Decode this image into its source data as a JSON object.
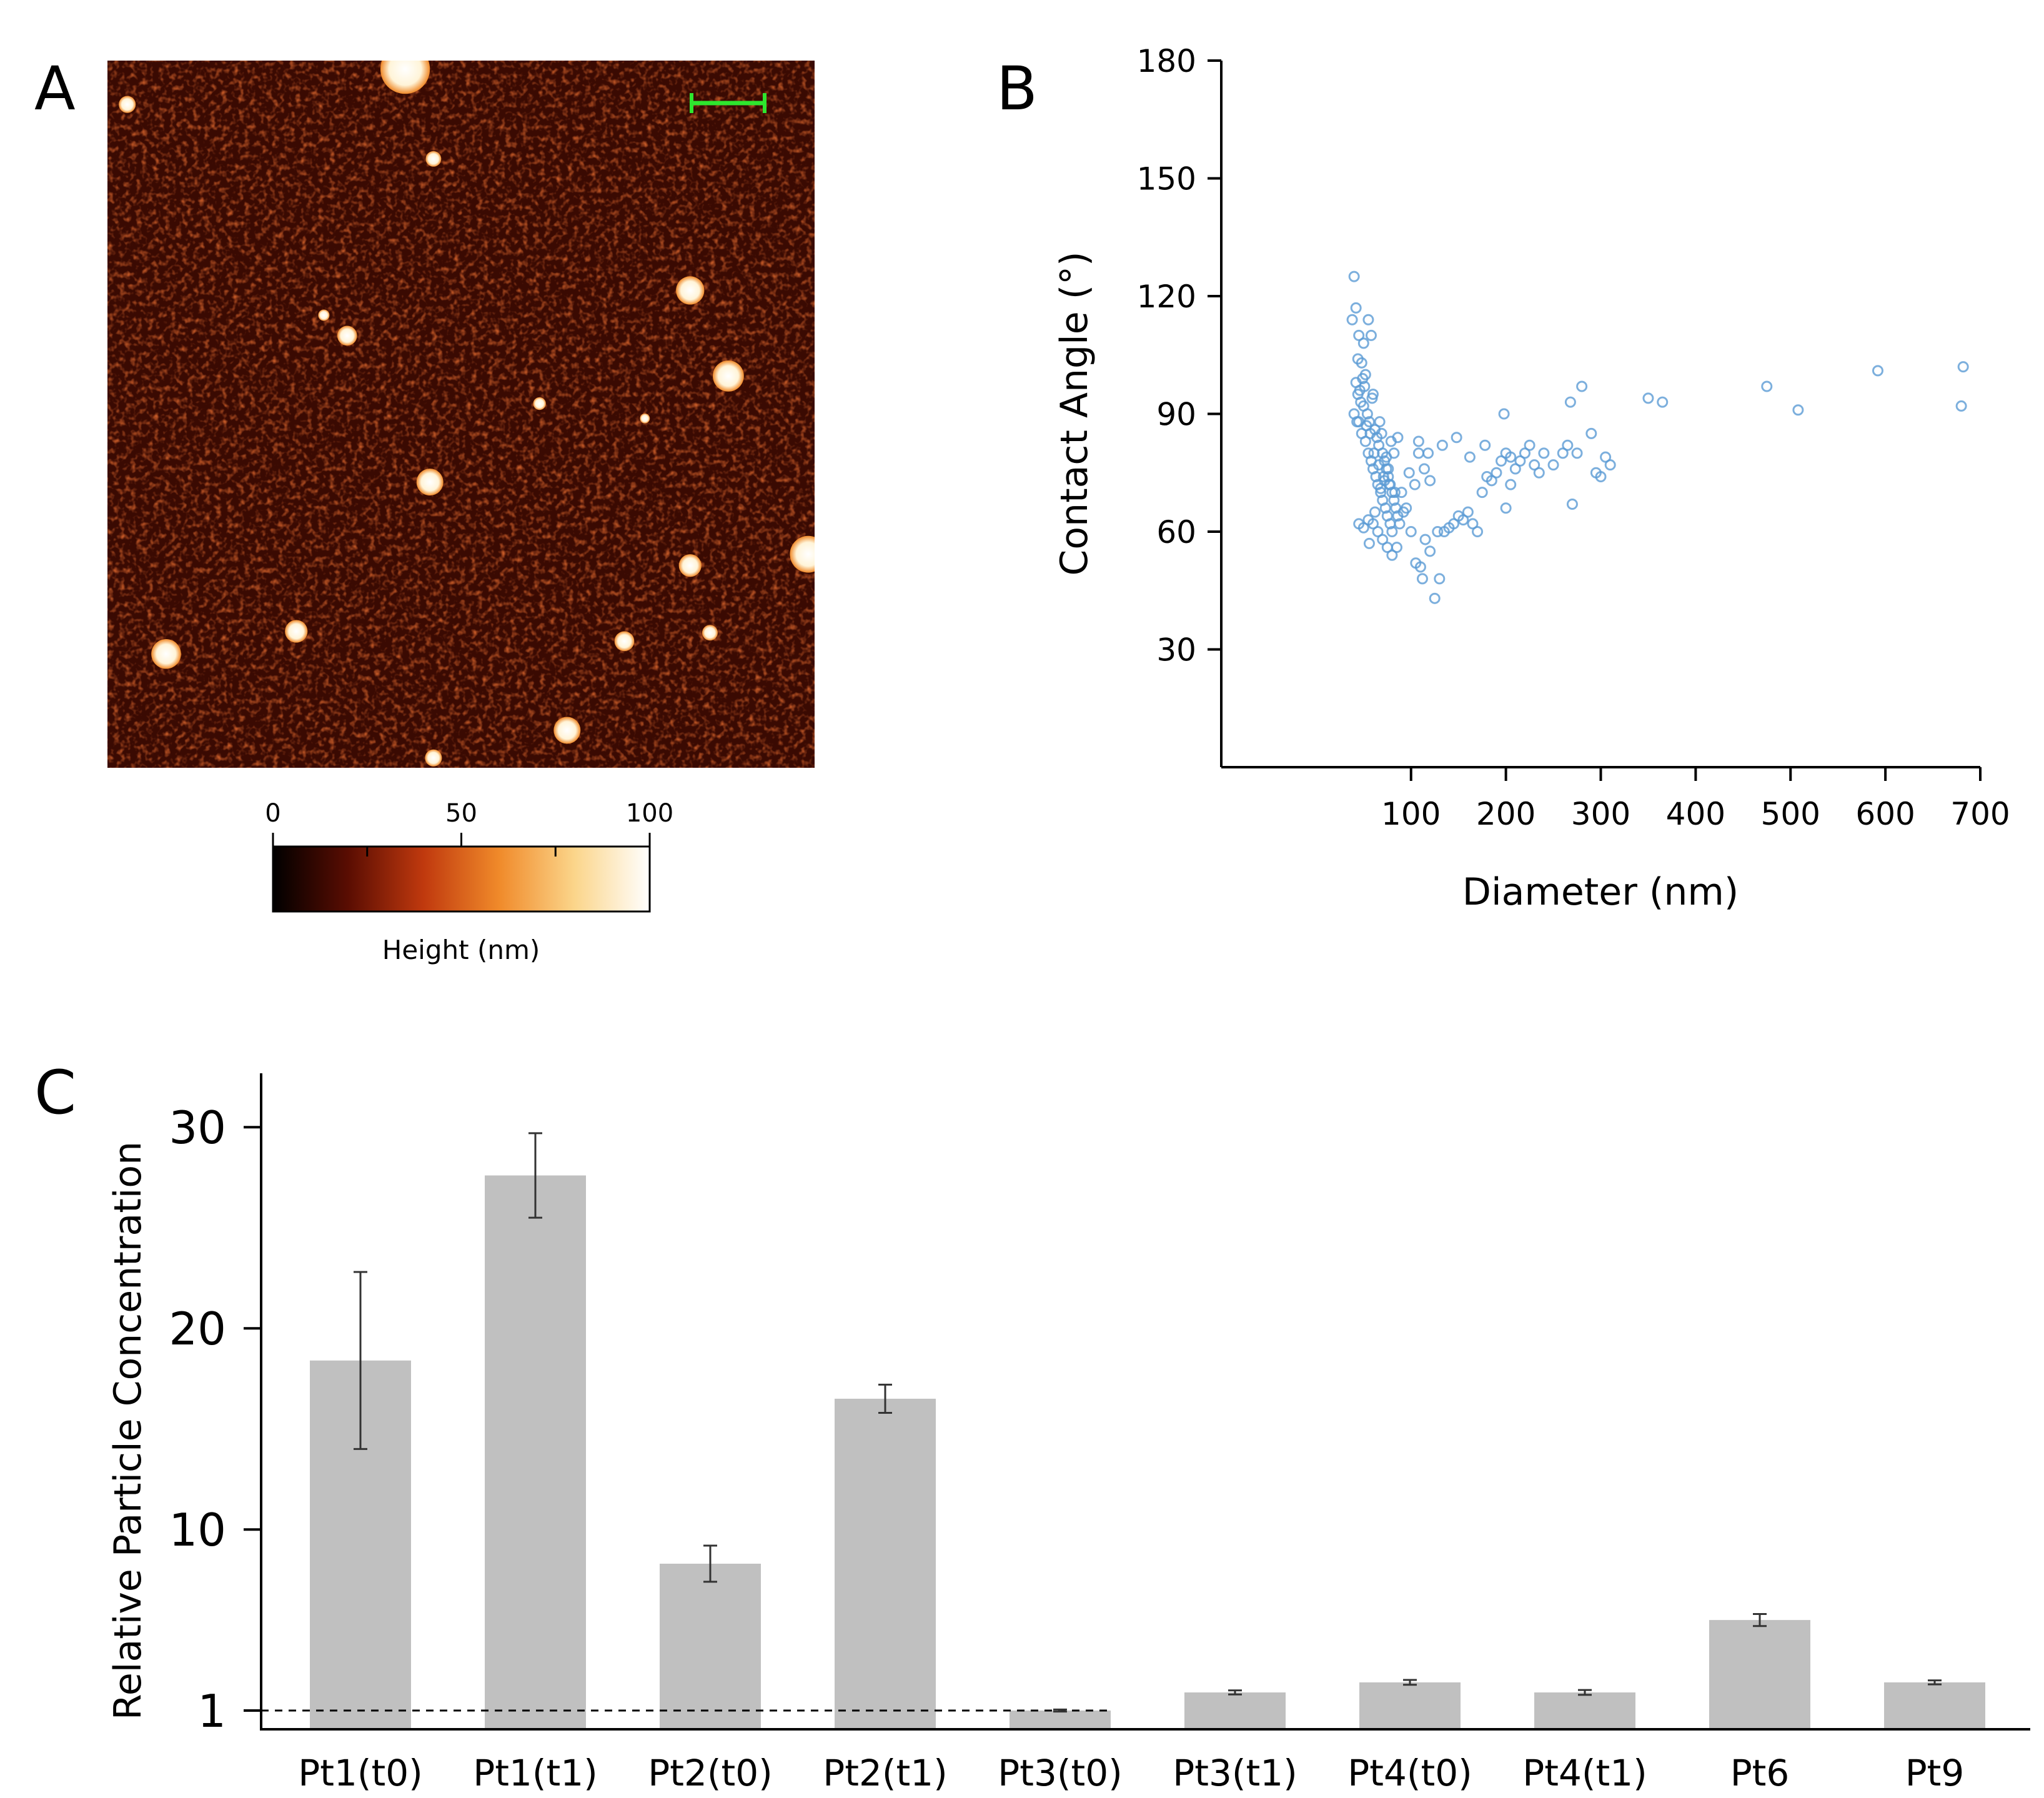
{
  "panel_labels": {
    "a": "A",
    "b": "B",
    "c": "C"
  },
  "colors": {
    "afm_bg": "#3a0a02",
    "scalebar": "#2ee62e",
    "scatter": "#5b9bd5",
    "bar": "#c0c0c0",
    "axis": "#000000"
  },
  "chart_data": [
    {
      "panel": "A",
      "type": "heatmap",
      "title": "",
      "description_shown": "AFM height map",
      "colorbar": {
        "label": "Height (nm)",
        "ticks": [
          0,
          50,
          100
        ],
        "range": [
          0,
          100
        ],
        "minor_ticks": [
          25,
          75
        ],
        "colormap": [
          "#000000",
          "#5a0d02",
          "#c0390e",
          "#f08a2a",
          "#fbd58a",
          "#ffffff"
        ]
      },
      "particles": [
        {
          "x": 0.028,
          "y": 0.062,
          "r": 0.012
        },
        {
          "x": 0.421,
          "y": 0.012,
          "r": 0.035
        },
        {
          "x": 0.461,
          "y": 0.139,
          "r": 0.011
        },
        {
          "x": 0.339,
          "y": 0.389,
          "r": 0.014
        },
        {
          "x": 0.824,
          "y": 0.325,
          "r": 0.02
        },
        {
          "x": 0.878,
          "y": 0.446,
          "r": 0.022
        },
        {
          "x": 0.456,
          "y": 0.596,
          "r": 0.019
        },
        {
          "x": 0.611,
          "y": 0.485,
          "r": 0.009
        },
        {
          "x": 0.824,
          "y": 0.714,
          "r": 0.016
        },
        {
          "x": 0.991,
          "y": 0.698,
          "r": 0.026
        },
        {
          "x": 0.267,
          "y": 0.807,
          "r": 0.016
        },
        {
          "x": 0.083,
          "y": 0.839,
          "r": 0.021
        },
        {
          "x": 0.731,
          "y": 0.821,
          "r": 0.014
        },
        {
          "x": 0.852,
          "y": 0.809,
          "r": 0.011
        },
        {
          "x": 0.65,
          "y": 0.947,
          "r": 0.019
        },
        {
          "x": 0.461,
          "y": 0.986,
          "r": 0.012
        },
        {
          "x": 0.76,
          "y": 0.506,
          "r": 0.007
        },
        {
          "x": 0.306,
          "y": 0.36,
          "r": 0.008
        }
      ]
    },
    {
      "panel": "B",
      "type": "scatter",
      "title": "",
      "xlabel": "Diameter (nm)",
      "ylabel": "Contact Angle (°)",
      "xlim": [
        -100,
        700
      ],
      "ylim": [
        0,
        180
      ],
      "xticks": [
        100,
        200,
        300,
        400,
        500,
        600,
        700
      ],
      "yticks": [
        30,
        60,
        90,
        120,
        150,
        180
      ],
      "x": [
        40,
        42,
        45,
        38,
        50,
        55,
        44,
        48,
        52,
        60,
        58,
        42,
        46,
        50,
        54,
        56,
        62,
        64,
        66,
        70,
        72,
        74,
        76,
        78,
        80,
        82,
        84,
        86,
        40,
        45,
        48,
        52,
        55,
        58,
        60,
        63,
        65,
        68,
        70,
        73,
        75,
        78,
        80,
        45,
        50,
        55,
        60,
        65,
        70,
        75,
        80,
        85,
        88,
        90,
        95,
        100,
        105,
        110,
        112,
        115,
        120,
        125,
        130,
        135,
        140,
        145,
        150,
        155,
        160,
        165,
        170,
        175,
        180,
        185,
        190,
        195,
        200,
        205,
        210,
        215,
        220,
        225,
        230,
        235,
        240,
        250,
        260,
        265,
        270,
        275,
        280,
        290,
        295,
        300,
        305,
        310,
        350,
        365,
        475,
        508,
        592,
        680,
        682,
        44,
        47,
        53,
        57,
        61,
        66,
        71,
        77,
        83,
        92,
        98,
        104,
        108,
        118,
        128,
        133,
        148,
        162,
        178,
        198,
        268,
        56,
        62,
        68,
        72,
        76,
        82,
        86,
        43,
        49,
        51,
        59,
        67,
        69,
        74,
        79,
        108,
        114,
        120,
        200,
        205
      ],
      "y": [
        125,
        117,
        110,
        114,
        108,
        114,
        104,
        103,
        100,
        95,
        110,
        98,
        96,
        92,
        90,
        88,
        86,
        84,
        82,
        80,
        78,
        76,
        74,
        72,
        70,
        68,
        66,
        64,
        90,
        88,
        85,
        83,
        80,
        78,
        76,
        74,
        72,
        70,
        68,
        66,
        64,
        62,
        60,
        62,
        61,
        63,
        62,
        60,
        58,
        56,
        54,
        56,
        62,
        70,
        66,
        60,
        52,
        51,
        48,
        58,
        55,
        43,
        48,
        60,
        61,
        62,
        64,
        63,
        65,
        62,
        60,
        70,
        74,
        73,
        75,
        78,
        66,
        72,
        76,
        78,
        80,
        82,
        77,
        75,
        80,
        77,
        80,
        82,
        67,
        80,
        97,
        85,
        75,
        74,
        79,
        77,
        94,
        93,
        97,
        91,
        101,
        92,
        102,
        95,
        93,
        87,
        85,
        80,
        77,
        74,
        72,
        70,
        65,
        75,
        72,
        83,
        80,
        60,
        82,
        84,
        79,
        82,
        90,
        93,
        57,
        65,
        71,
        73,
        76,
        80,
        84,
        88,
        99,
        97,
        94,
        88,
        85,
        79,
        83,
        80,
        76,
        73,
        80,
        79
      ]
    },
    {
      "panel": "C",
      "type": "bar",
      "title": "",
      "xlabel": "",
      "ylabel": "Relative Particle Concentration",
      "categories": [
        "Pt1(t0)",
        "Pt1(t1)",
        "Pt2(t0)",
        "Pt2(t1)",
        "Pt3(t0)",
        "Pt3(t1)",
        "Pt4(t0)",
        "Pt4(t1)",
        "Pt6",
        "Pt9"
      ],
      "values": [
        18.4,
        27.6,
        8.3,
        16.5,
        1.0,
        1.9,
        2.4,
        1.9,
        5.5,
        2.4
      ],
      "errors": [
        4.4,
        2.1,
        0.9,
        0.7,
        0.05,
        0.1,
        0.12,
        0.12,
        0.3,
        0.1
      ],
      "yticks": [
        1,
        10,
        20,
        30
      ],
      "ylim": [
        0,
        32
      ],
      "reference_line": 1
    }
  ]
}
